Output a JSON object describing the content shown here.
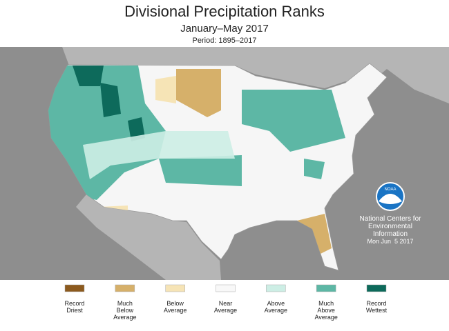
{
  "title": "Divisional Precipitation Ranks",
  "subtitle": "January–May 2017",
  "period": "Period: 1895–2017",
  "credit": {
    "lines": [
      "National Centers for",
      "Environmental",
      "Information"
    ],
    "date": "Mon Jun  5 2017",
    "logo": "NOAA"
  },
  "legend": [
    {
      "lines": [
        "Record",
        "Driest"
      ],
      "color": "#8c5a1e"
    },
    {
      "lines": [
        "Much",
        "Below",
        "Average"
      ],
      "color": "#d6b06a"
    },
    {
      "lines": [
        "Below",
        "Average"
      ],
      "color": "#f6e4b6"
    },
    {
      "lines": [
        "Near",
        "Average"
      ],
      "color": "#f8f8f8"
    },
    {
      "lines": [
        "Above",
        "Average"
      ],
      "color": "#cdeee5"
    },
    {
      "lines": [
        "Much",
        "Above",
        "Average"
      ],
      "color": "#5db7a5"
    },
    {
      "lines": [
        "Record",
        "Wettest"
      ],
      "color": "#0d6a5b"
    }
  ]
}
